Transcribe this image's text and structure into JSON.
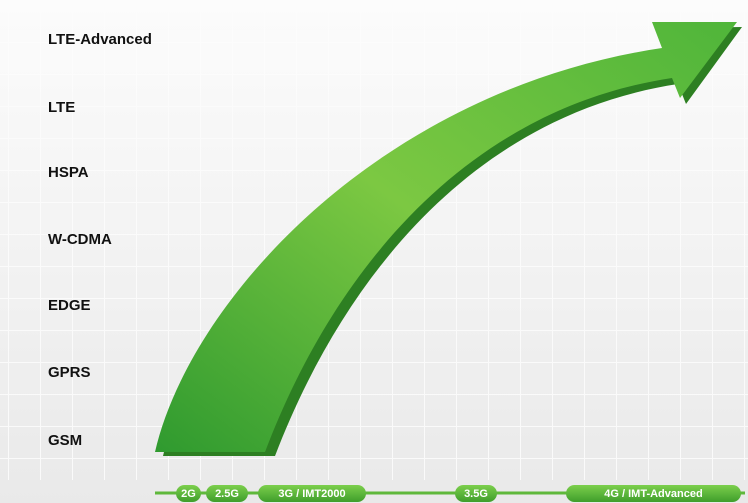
{
  "technologies": [
    "LTE-Advanced",
    "LTE",
    "HSPA",
    "W-CDMA",
    "EDGE",
    "GPRS",
    "GSM"
  ],
  "generations": [
    "2G",
    "2.5G",
    "3G / IMT2000",
    "3.5G",
    "4G / IMT-Advanced"
  ]
}
